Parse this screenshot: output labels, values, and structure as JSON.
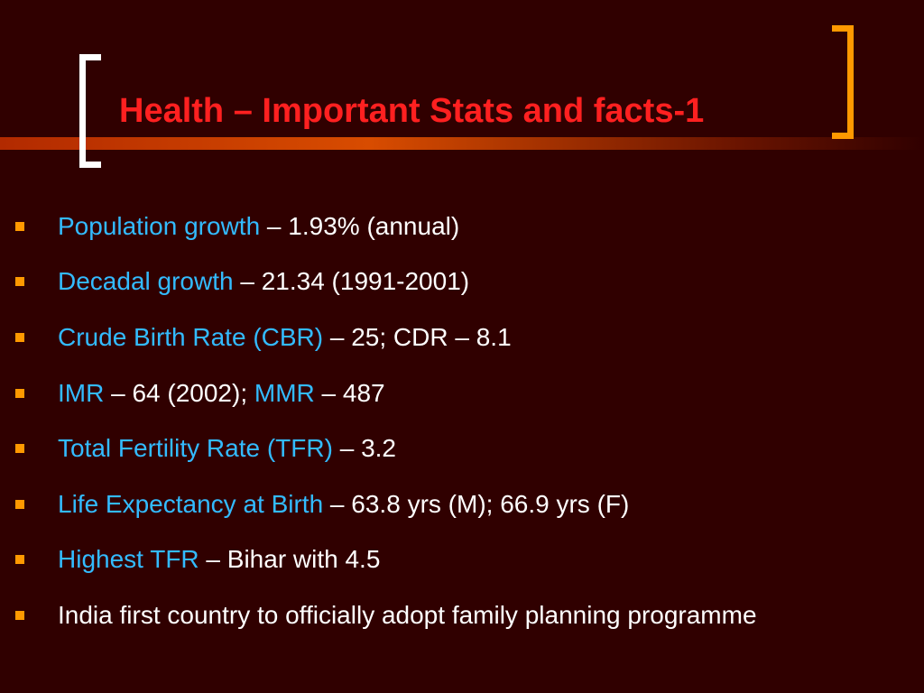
{
  "slide": {
    "title": "Health – Important Stats and facts-1",
    "colors": {
      "background": "#300000",
      "title": "#ff2020",
      "term": "#33bbff",
      "body_text": "#ffffff",
      "bullet": "#ff9900",
      "left_bracket": "#ffffff",
      "right_bracket": "#ff9900",
      "accent_line": "#d84c00"
    },
    "bullets": [
      {
        "term": "Population growth",
        "rest": " – 1.93% (annual)"
      },
      {
        "term": "Decadal growth",
        "rest": " – 21.34 (1991-2001)"
      },
      {
        "term": "Crude Birth Rate (CBR)",
        "rest": " – 25; CDR – 8.1"
      },
      {
        "term": "IMR",
        "middle": " – 64 (2002); ",
        "term2": "MMR",
        "rest": " – 487"
      },
      {
        "term": "Total Fertility Rate (TFR)",
        "rest": " – 3.2"
      },
      {
        "term": "Life Expectancy at Birth",
        "rest": " – 63.8 yrs (M); 66.9 yrs (F)"
      },
      {
        "term": "Highest TFR",
        "rest": " – Bihar with 4.5"
      },
      {
        "text": "India first country to officially adopt family planning programme"
      }
    ]
  }
}
